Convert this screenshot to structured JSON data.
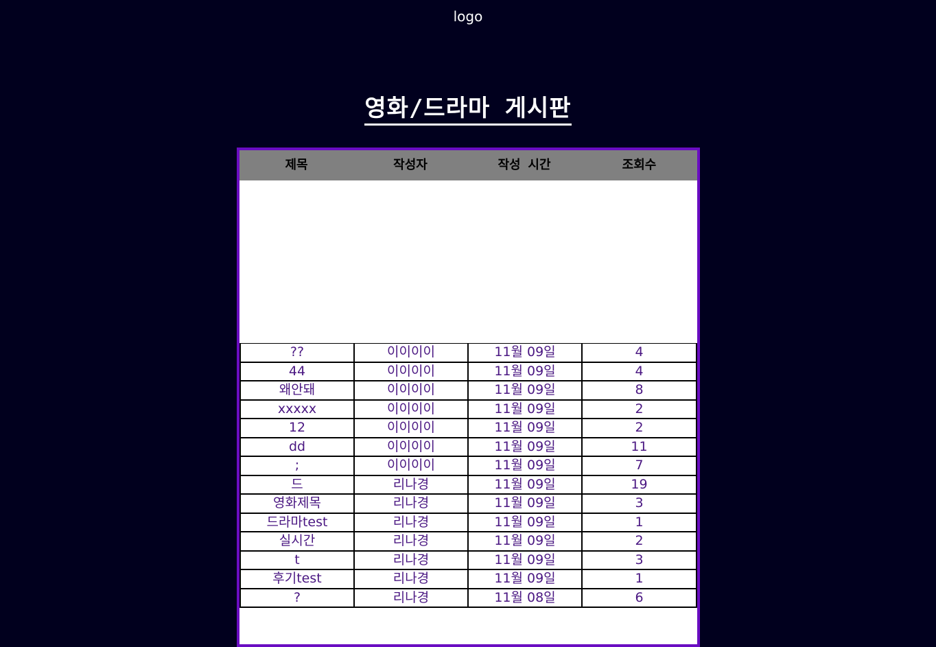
{
  "header": {
    "logo": "logo"
  },
  "board": {
    "title": "영화/드라마 게시판",
    "columns": [
      "제목",
      "작성자",
      "작성 시간",
      "조회수"
    ],
    "rows": [
      {
        "title": "??",
        "author": "이이이이",
        "time": "11월 09일",
        "views": "4"
      },
      {
        "title": "44",
        "author": "이이이이",
        "time": "11월 09일",
        "views": "4"
      },
      {
        "title": "왜안돼",
        "author": "이이이이",
        "time": "11월 09일",
        "views": "8"
      },
      {
        "title": "xxxxx",
        "author": "이이이이",
        "time": "11월 09일",
        "views": "2"
      },
      {
        "title": "12",
        "author": "이이이이",
        "time": "11월 09일",
        "views": "2"
      },
      {
        "title": "dd",
        "author": "이이이이",
        "time": "11월 09일",
        "views": "11"
      },
      {
        "title": ";",
        "author": "이이이이",
        "time": "11월 09일",
        "views": "7"
      },
      {
        "title": "드",
        "author": "리나경",
        "time": "11월 09일",
        "views": "19"
      },
      {
        "title": "영화제목",
        "author": "리나경",
        "time": "11월 09일",
        "views": "3"
      },
      {
        "title": "드라마test",
        "author": "리나경",
        "time": "11월 09일",
        "views": "1"
      },
      {
        "title": "실시간",
        "author": "리나경",
        "time": "11월 09일",
        "views": "2"
      },
      {
        "title": "t",
        "author": "리나경",
        "time": "11월 09일",
        "views": "3"
      },
      {
        "title": "후기test",
        "author": "리나경",
        "time": "11월 09일",
        "views": "1"
      },
      {
        "title": "?",
        "author": "리나경",
        "time": "11월 08일",
        "views": "6"
      }
    ]
  },
  "colors": {
    "background": "#01001e",
    "frame_border": "#6a0dc2",
    "header_bg": "#808080",
    "row_text": "#4a1782"
  }
}
